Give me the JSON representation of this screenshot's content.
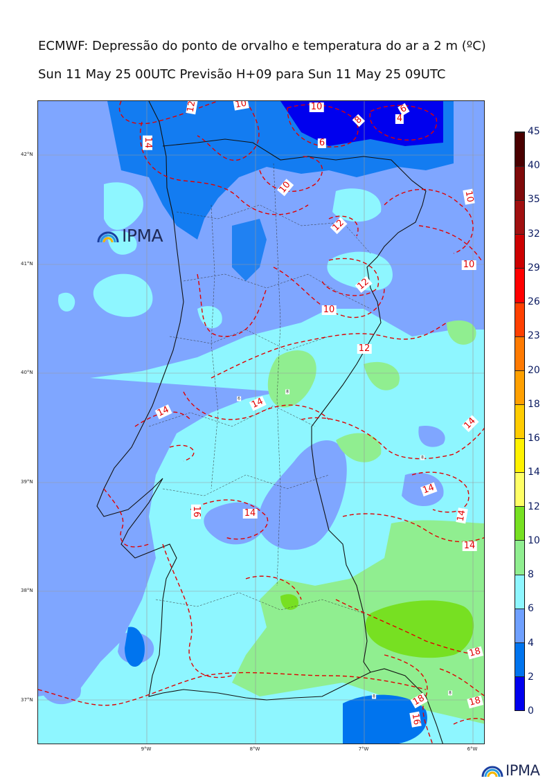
{
  "title": {
    "line1": "ECMWF: Depressão do ponto de orvalho e temperatura do ar a 2 m (ºC)",
    "line2": "Sun 11 May 25 00UTC Previsão H+09 para Sun 11 May 25 09UTC"
  },
  "logo": {
    "text": "IPMA"
  },
  "axes": {
    "longitude_labels": [
      "9°W",
      "8°W",
      "7°W",
      "6°W"
    ],
    "latitude_labels": [
      "42°N",
      "41°N",
      "40°N",
      "39°N",
      "38°N",
      "37°N"
    ]
  },
  "colorbar": {
    "labels": [
      "0",
      "2",
      "4",
      "6",
      "8",
      "10",
      "12",
      "14",
      "16",
      "18",
      "20",
      "23",
      "26",
      "29",
      "32",
      "35",
      "40",
      "45"
    ],
    "colors": [
      "#0000ee",
      "#0074ee",
      "#6fa0ff",
      "#8ef6ff",
      "#90ee90",
      "#77e022",
      "#ffff66",
      "#fff200",
      "#ffcc00",
      "#ffa000",
      "#ff7a00",
      "#ff4000",
      "#ff0000",
      "#cc0000",
      "#a01010",
      "#7f0a0a",
      "#4a0000"
    ]
  },
  "contour_labels": [
    "12",
    "10",
    "10",
    "6",
    "8",
    "4",
    "6",
    "14",
    "10",
    "12",
    "10",
    "12",
    "10",
    "10",
    "12",
    "14",
    "14",
    "14",
    "14",
    "16",
    "14",
    "14",
    "14",
    "18",
    "18",
    "16",
    "18"
  ],
  "dewpoint_labels": [
    "6",
    "8",
    "8",
    "8",
    "8"
  ]
}
